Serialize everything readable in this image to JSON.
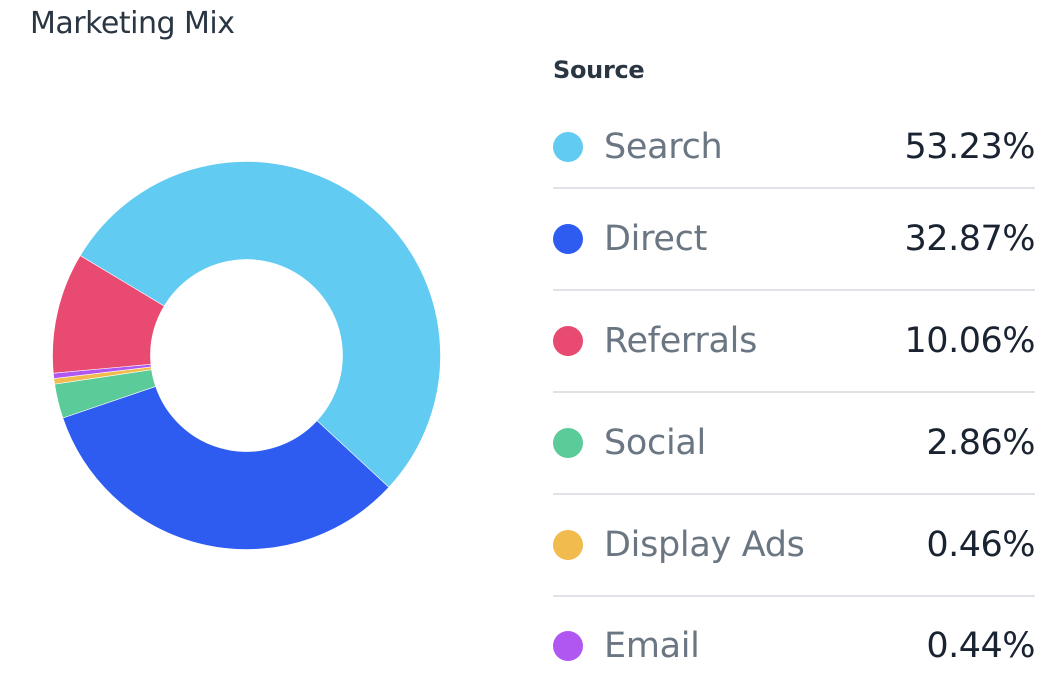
{
  "chart_data": {
    "type": "pie",
    "title": "Marketing Mix",
    "legend_title": "Source",
    "donut": true,
    "legend_placement": "right",
    "slices": [
      {
        "name": "Search",
        "value": 53.23,
        "label": "53.23%",
        "color": "#62cbf1"
      },
      {
        "name": "Direct",
        "value": 32.87,
        "label": "32.87%",
        "color": "#2e5bf0"
      },
      {
        "name": "Referrals",
        "value": 10.06,
        "label": "10.06%",
        "color": "#e94a71"
      },
      {
        "name": "Social",
        "value": 2.86,
        "label": "2.86%",
        "color": "#5ccb9a"
      },
      {
        "name": "Display Ads",
        "value": 0.46,
        "label": "0.46%",
        "color": "#f2bb4d"
      },
      {
        "name": "Email",
        "value": 0.44,
        "label": "0.44%",
        "color": "#b057f2"
      }
    ]
  }
}
